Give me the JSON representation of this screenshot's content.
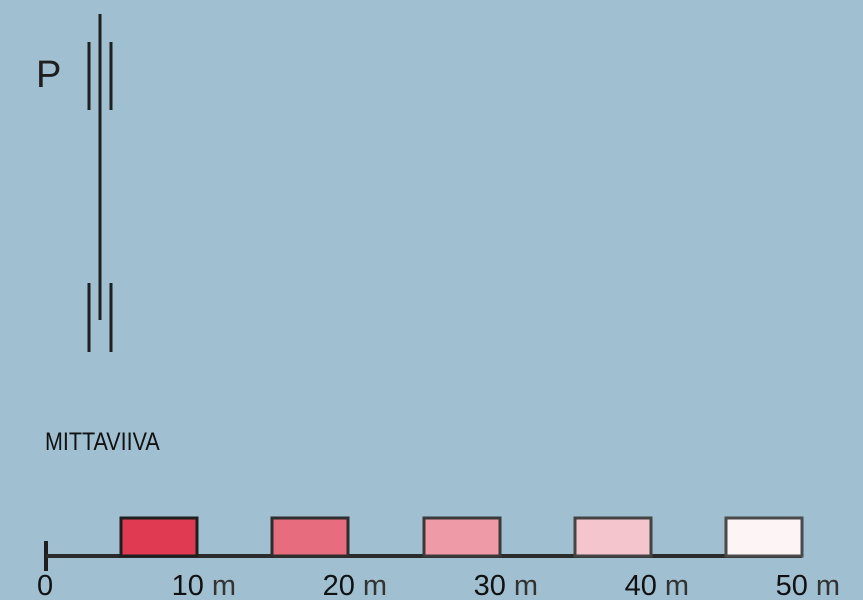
{
  "colors": {
    "background": "#a0c0d2",
    "ink": "#1f1f1f"
  },
  "north_arrow": {
    "label": "P",
    "icon": "north-arrow-icon"
  },
  "scale_bar": {
    "title": "MITTAVIIVA",
    "unit": "m",
    "start_label": "0",
    "ticks": [
      {
        "value": "10",
        "unit": "m",
        "fill": "#e03a52"
      },
      {
        "value": "20",
        "unit": "m",
        "fill": "#e66c7e"
      },
      {
        "value": "30",
        "unit": "m",
        "fill": "#ef9ba7"
      },
      {
        "value": "40",
        "unit": "m",
        "fill": "#f5c5ce"
      },
      {
        "value": "50",
        "unit": "m",
        "fill": "#fdf4f6"
      }
    ]
  }
}
